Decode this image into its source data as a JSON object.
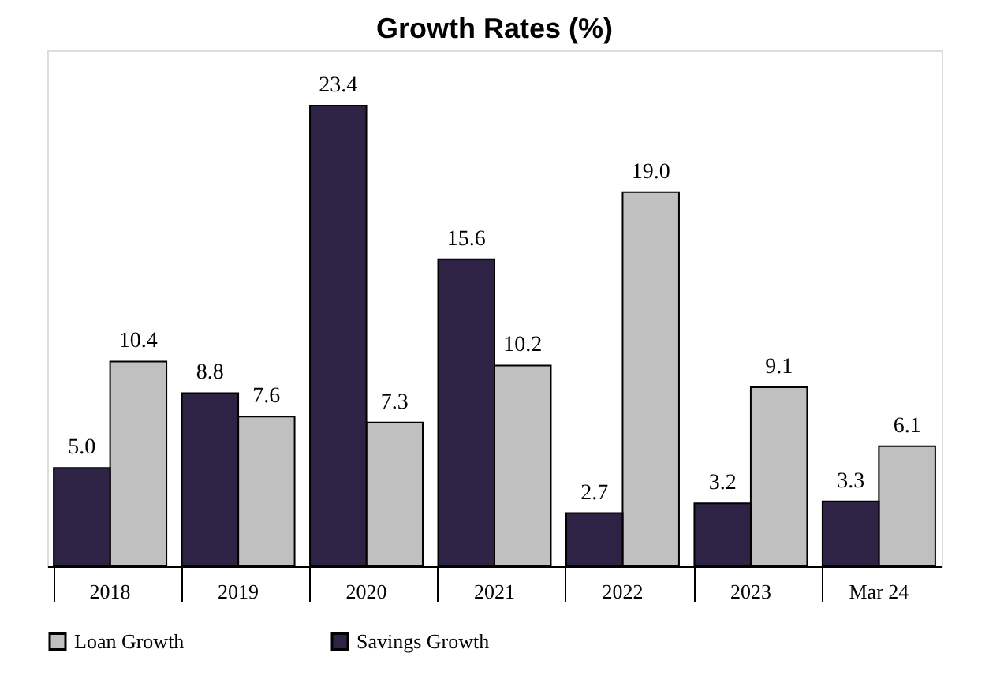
{
  "chart_data": {
    "type": "bar",
    "title": "Growth Rates (%)",
    "categories": [
      "2018",
      "2019",
      "2020",
      "2021",
      "2022",
      "2023",
      "Mar 24"
    ],
    "series": [
      {
        "name": "Loan Growth",
        "color": "#c0c0c0",
        "values": [
          10.4,
          7.6,
          7.3,
          10.2,
          19,
          9.1,
          6.1
        ],
        "value_labels": [
          "10.4",
          "7.6",
          "7.3",
          "10.2",
          "19.0",
          "9.1",
          "6.1"
        ]
      },
      {
        "name": "Savings Growth",
        "color": "#2e2245",
        "values": [
          5,
          8.8,
          23.4,
          15.6,
          2.7,
          3.2,
          3.3
        ],
        "value_labels": [
          "5.0",
          "8.8",
          "23.4",
          "15.6",
          "2.7",
          "3.2",
          "3.3"
        ]
      }
    ],
    "legend": "bottom",
    "grid": false
  }
}
